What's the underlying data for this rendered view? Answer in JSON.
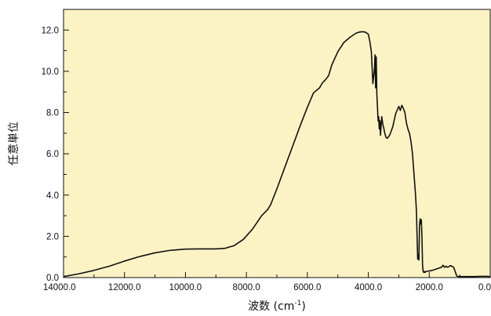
{
  "chart_data": {
    "type": "line",
    "xlabel": "波数 (cm",
    "xlabel_sup": "-1",
    "xlabel_close": ")",
    "ylabel": "任意単位",
    "xlim": [
      14000,
      0
    ],
    "x_reversed": true,
    "ylim": [
      0,
      13
    ],
    "x_ticks": [
      14000,
      12000,
      10000,
      8000,
      6000,
      4000,
      2000,
      0
    ],
    "x_tick_labels": [
      "14000.0",
      "12000.0",
      "10000.0",
      "8000.0",
      "6000.0",
      "4000.0",
      "2000.0",
      "0.0"
    ],
    "y_ticks": [
      0,
      2,
      4,
      6,
      8,
      10,
      12
    ],
    "y_tick_labels": [
      "0.0",
      "2.0",
      "4.0",
      "6.0",
      "8.0",
      "10.0",
      "12.0"
    ],
    "grid": false,
    "legend": "none",
    "series": [
      {
        "color": "#111111",
        "x": [
          14000,
          13500,
          13000,
          12500,
          12000,
          11500,
          11000,
          10500,
          10000,
          9500,
          9000,
          8700,
          8400,
          8100,
          7800,
          7500,
          7300,
          7200,
          7000,
          6800,
          6600,
          6400,
          6200,
          6000,
          5800,
          5600,
          5500,
          5400,
          5300,
          5200,
          5000,
          4800,
          4600,
          4400,
          4300,
          4200,
          4100,
          4000,
          3950,
          3900,
          3850,
          3800,
          3780,
          3760,
          3740,
          3720,
          3700,
          3680,
          3660,
          3640,
          3620,
          3600,
          3560,
          3520,
          3500,
          3460,
          3420,
          3380,
          3300,
          3200,
          3100,
          3000,
          2950,
          2900,
          2850,
          2800,
          2750,
          2700,
          2650,
          2600,
          2550,
          2500,
          2450,
          2420,
          2400,
          2380,
          2360,
          2340,
          2320,
          2300,
          2280,
          2260,
          2240,
          2220,
          2200,
          2180,
          2160,
          2140,
          2120,
          2100,
          2000,
          1900,
          1800,
          1700,
          1600,
          1550,
          1500,
          1450,
          1400,
          1300,
          1200,
          1150,
          1100,
          1050,
          1000,
          900,
          700,
          500,
          300,
          100,
          0
        ],
        "y": [
          0.05,
          0.18,
          0.35,
          0.55,
          0.8,
          1.02,
          1.2,
          1.32,
          1.38,
          1.39,
          1.39,
          1.42,
          1.55,
          1.85,
          2.35,
          3.0,
          3.3,
          3.55,
          4.3,
          5.1,
          5.9,
          6.7,
          7.5,
          8.25,
          8.95,
          9.2,
          9.45,
          9.6,
          9.8,
          10.3,
          10.95,
          11.4,
          11.65,
          11.85,
          11.9,
          11.92,
          11.9,
          11.8,
          11.45,
          10.95,
          9.4,
          10.1,
          10.8,
          9.2,
          10.7,
          8.9,
          8.3,
          7.6,
          7.8,
          7.2,
          7.6,
          6.9,
          7.8,
          7.4,
          7.3,
          7.0,
          6.8,
          6.75,
          6.9,
          7.3,
          7.95,
          8.3,
          8.1,
          8.35,
          8.2,
          8.0,
          7.5,
          7.2,
          7.0,
          6.6,
          6.0,
          5.0,
          4.0,
          3.2,
          2.0,
          0.9,
          1.1,
          0.85,
          2.5,
          2.85,
          2.6,
          2.8,
          2.0,
          0.6,
          0.3,
          0.25,
          0.3,
          0.25,
          0.28,
          0.3,
          0.32,
          0.35,
          0.4,
          0.45,
          0.5,
          0.6,
          0.5,
          0.55,
          0.5,
          0.58,
          0.5,
          0.3,
          0.08,
          0.05,
          0.05,
          0.05,
          0.05,
          0.05,
          0.06,
          0.06,
          0.05
        ]
      }
    ]
  },
  "colors": {
    "plot_background": "#fcf3c4",
    "axis": "#111111",
    "line": "#111111",
    "page_background": "#ffffff"
  }
}
